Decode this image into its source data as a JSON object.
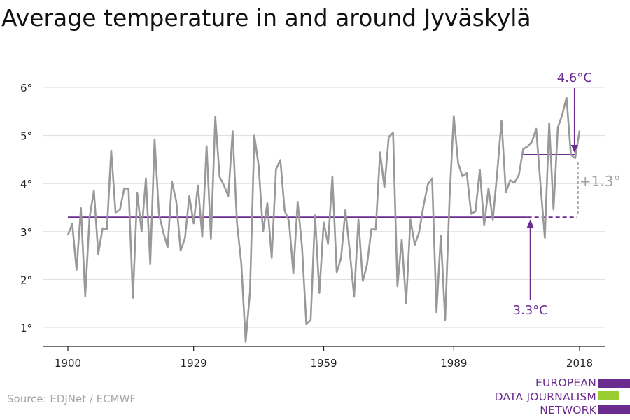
{
  "title": "Average temperature in and around Jyväskylä",
  "source": "Source: EDJNet / ECMWF",
  "logo": {
    "lines": [
      "EUROPEAN",
      "DATA JOURNALISM",
      "NETWORK"
    ],
    "colors": {
      "text": "#6a2c8f",
      "bar_top": "#6a2c8f",
      "bar_mid": "#9acd32",
      "bar_bottom": "#6a2c8f"
    }
  },
  "colors": {
    "series": "#999999",
    "accent": "#6a2c8f",
    "change": "#a0a0a0",
    "grid": "#dddddd",
    "axis": "#222222"
  },
  "chart_data": {
    "type": "line",
    "title": "Average temperature in and around Jyväskylä",
    "xlabel": "",
    "ylabel": "",
    "xlim": [
      1900,
      2018
    ],
    "ylim": [
      0.6,
      6.2
    ],
    "x_ticks": [
      1900,
      1929,
      1959,
      1989,
      2018
    ],
    "x_tick_labels": [
      "1900",
      "1929",
      "1959",
      "1989",
      "2018"
    ],
    "y_ticks": [
      1,
      2,
      3,
      4,
      5,
      6
    ],
    "y_tick_labels": [
      "1°",
      "2°",
      "3°",
      "4°",
      "5°",
      "6°"
    ],
    "grid": "horizontal",
    "legend": "none",
    "series": [
      {
        "x": [
          1900,
          1901,
          1902,
          1903,
          1904,
          1905,
          1906,
          1907,
          1908,
          1909,
          1910,
          1911,
          1912,
          1913,
          1914,
          1915,
          1916,
          1917,
          1918,
          1919,
          1920,
          1921,
          1922,
          1923,
          1924,
          1925,
          1926,
          1927,
          1928,
          1929,
          1930,
          1931,
          1932,
          1933,
          1934,
          1935,
          1936,
          1937,
          1938,
          1939,
          1940,
          1941,
          1942,
          1943,
          1944,
          1945,
          1946,
          1947,
          1948,
          1949,
          1950,
          1951,
          1952,
          1953,
          1954,
          1955,
          1956,
          1957,
          1958,
          1959,
          1960,
          1961,
          1962,
          1963,
          1964,
          1965,
          1966,
          1967,
          1968,
          1969,
          1970,
          1971,
          1972,
          1973,
          1974,
          1975,
          1976,
          1977,
          1978,
          1979,
          1980,
          1981,
          1982,
          1983,
          1984,
          1985,
          1986,
          1987,
          1988,
          1989,
          1990,
          1991,
          1992,
          1993,
          1994,
          1995,
          1996,
          1997,
          1998,
          1999,
          2000,
          2001,
          2002,
          2003,
          2004,
          2005,
          2006,
          2007,
          2008,
          2009,
          2010,
          2011,
          2012,
          2013,
          2014,
          2015,
          2016,
          2017,
          2018
        ],
        "values": [
          2.93,
          3.16,
          2.2,
          3.49,
          1.65,
          3.3,
          3.85,
          2.53,
          3.07,
          3.05,
          4.69,
          3.4,
          3.45,
          3.9,
          3.89,
          1.62,
          3.81,
          3.0,
          4.11,
          2.33,
          4.92,
          3.37,
          2.99,
          2.67,
          4.04,
          3.63,
          2.6,
          2.86,
          3.74,
          3.17,
          3.96,
          2.89,
          4.78,
          2.84,
          5.39,
          4.14,
          3.96,
          3.74,
          5.09,
          3.18,
          2.33,
          0.7,
          1.74,
          5.0,
          4.37,
          3.0,
          3.59,
          2.45,
          4.3,
          4.49,
          3.44,
          3.22,
          2.13,
          3.62,
          2.68,
          1.07,
          1.16,
          3.34,
          1.72,
          3.19,
          2.74,
          4.15,
          2.15,
          2.45,
          3.45,
          2.59,
          1.64,
          3.25,
          1.97,
          2.31,
          3.05,
          3.04,
          4.65,
          3.92,
          4.97,
          5.06,
          1.86,
          2.83,
          1.5,
          3.25,
          2.72,
          2.99,
          3.53,
          3.98,
          4.11,
          1.32,
          2.92,
          1.16,
          3.66,
          5.41,
          4.43,
          4.15,
          4.22,
          3.37,
          3.42,
          4.29,
          3.13,
          3.9,
          3.25,
          4.22,
          5.31,
          3.82,
          4.07,
          4.02,
          4.18,
          4.72,
          4.77,
          4.87,
          5.14,
          3.98,
          2.87,
          5.26,
          3.46,
          5.17,
          5.43,
          5.79,
          4.6,
          4.53,
          5.1
        ]
      }
    ],
    "annotations": [
      {
        "label": "3.3°C",
        "value": 3.3,
        "x_start": 1900,
        "x_end": 2018,
        "solid_until": 2006,
        "arrow_x": 2006,
        "text_position": "below"
      },
      {
        "label": "4.6°C",
        "value": 4.6,
        "x_start": 2005,
        "x_end": 2018,
        "arrow_x": 2017,
        "text_position": "above"
      },
      {
        "label": "+1.3°",
        "from": 3.3,
        "to": 4.6,
        "x": 2017.5,
        "text_position": "right"
      }
    ]
  }
}
